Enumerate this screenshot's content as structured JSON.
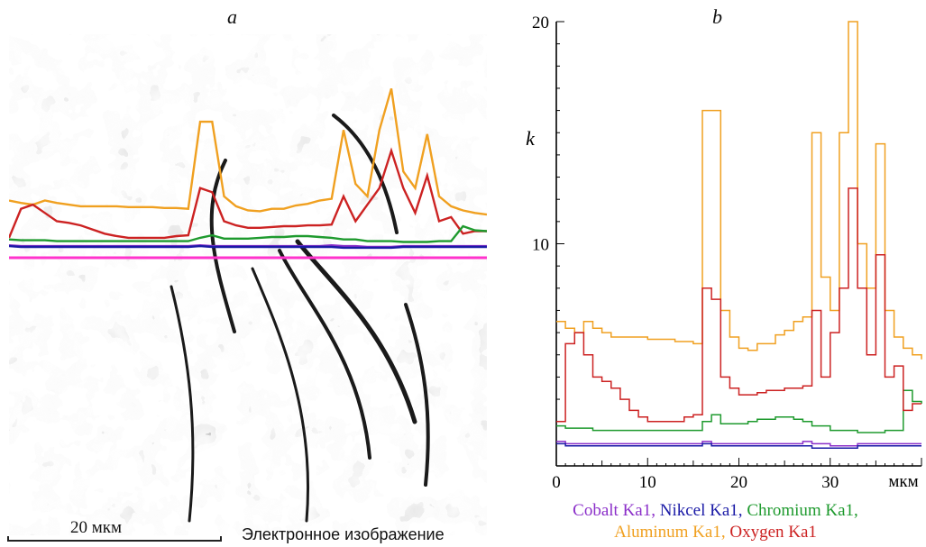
{
  "panel_a": {
    "letter": "a",
    "scale_label": "20 мкм",
    "caption": "Электронное изображение"
  },
  "chart_data": {
    "type": "line",
    "panel_letter": "b",
    "xlabel": "мкм",
    "ylabel": "k",
    "xlim": [
      0,
      40
    ],
    "ylim": [
      0,
      20
    ],
    "x_ticks": [
      0,
      10,
      20,
      30
    ],
    "y_ticks": [
      10,
      20
    ],
    "x": [
      0,
      1,
      2,
      3,
      4,
      5,
      6,
      7,
      8,
      9,
      10,
      11,
      12,
      13,
      14,
      15,
      16,
      17,
      18,
      19,
      20,
      21,
      22,
      23,
      24,
      25,
      26,
      27,
      28,
      29,
      30,
      31,
      32,
      33,
      34,
      35,
      36,
      37,
      38,
      39,
      40
    ],
    "series": [
      {
        "name": "Cobalt Ka1",
        "color": "#8b2fc9",
        "values": [
          1.1,
          1.0,
          1.0,
          1.0,
          1.0,
          1.0,
          1.0,
          1.0,
          1.0,
          1.0,
          1.0,
          1.0,
          1.0,
          1.0,
          1.0,
          1.0,
          1.1,
          1.0,
          1.0,
          1.0,
          1.0,
          1.0,
          1.0,
          1.0,
          1.0,
          1.0,
          1.0,
          1.1,
          1.0,
          1.0,
          0.9,
          0.9,
          0.9,
          1.0,
          1.0,
          1.0,
          1.0,
          1.0,
          1.0,
          1.0,
          1.0
        ]
      },
      {
        "name": "Nikcel Ka1",
        "color": "#1a1aa6",
        "values": [
          1.0,
          0.9,
          0.9,
          0.9,
          0.9,
          0.9,
          0.9,
          0.9,
          0.9,
          0.9,
          0.9,
          0.9,
          0.9,
          0.9,
          0.9,
          0.9,
          1.0,
          0.9,
          0.9,
          0.9,
          0.9,
          0.9,
          0.9,
          0.9,
          0.9,
          0.9,
          0.9,
          0.9,
          0.8,
          0.8,
          0.8,
          0.8,
          0.8,
          0.9,
          0.9,
          0.9,
          0.9,
          0.9,
          0.9,
          0.9,
          0.9
        ]
      },
      {
        "name": "Chromium Ka1",
        "color": "#1e9a2e",
        "values": [
          1.8,
          1.7,
          1.7,
          1.7,
          1.6,
          1.6,
          1.6,
          1.6,
          1.6,
          1.6,
          1.6,
          1.6,
          1.6,
          1.6,
          1.6,
          1.6,
          2.0,
          2.3,
          1.9,
          1.9,
          1.9,
          2.0,
          2.1,
          2.1,
          2.2,
          2.2,
          2.1,
          2.0,
          1.8,
          1.8,
          1.6,
          1.6,
          1.6,
          1.5,
          1.5,
          1.5,
          1.6,
          1.6,
          3.4,
          2.9,
          2.8
        ]
      },
      {
        "name": "Aluminum Ka1",
        "color": "#f0a020",
        "values": [
          6.5,
          6.2,
          6.0,
          6.5,
          6.2,
          6.0,
          5.8,
          5.8,
          5.8,
          5.8,
          5.7,
          5.7,
          5.7,
          5.6,
          5.6,
          5.5,
          16.0,
          16.0,
          7.0,
          5.8,
          5.3,
          5.2,
          5.5,
          5.5,
          5.9,
          6.1,
          6.5,
          6.7,
          15.0,
          8.5,
          7.0,
          15.0,
          20.0,
          10.0,
          8.0,
          14.5,
          7.0,
          5.8,
          5.3,
          5.0,
          4.8
        ]
      },
      {
        "name": "Oxygen Ka1",
        "color": "#cc2222",
        "values": [
          2.0,
          5.5,
          6.0,
          5.0,
          4.0,
          3.8,
          3.5,
          3.0,
          2.5,
          2.2,
          2.0,
          2.0,
          2.0,
          2.0,
          2.2,
          2.3,
          8.0,
          7.5,
          4.0,
          3.5,
          3.2,
          3.2,
          3.3,
          3.4,
          3.4,
          3.5,
          3.5,
          3.6,
          7.0,
          4.0,
          6.0,
          8.0,
          12.5,
          8.0,
          5.0,
          9.5,
          4.0,
          4.5,
          2.5,
          2.8,
          2.8
        ]
      }
    ]
  }
}
